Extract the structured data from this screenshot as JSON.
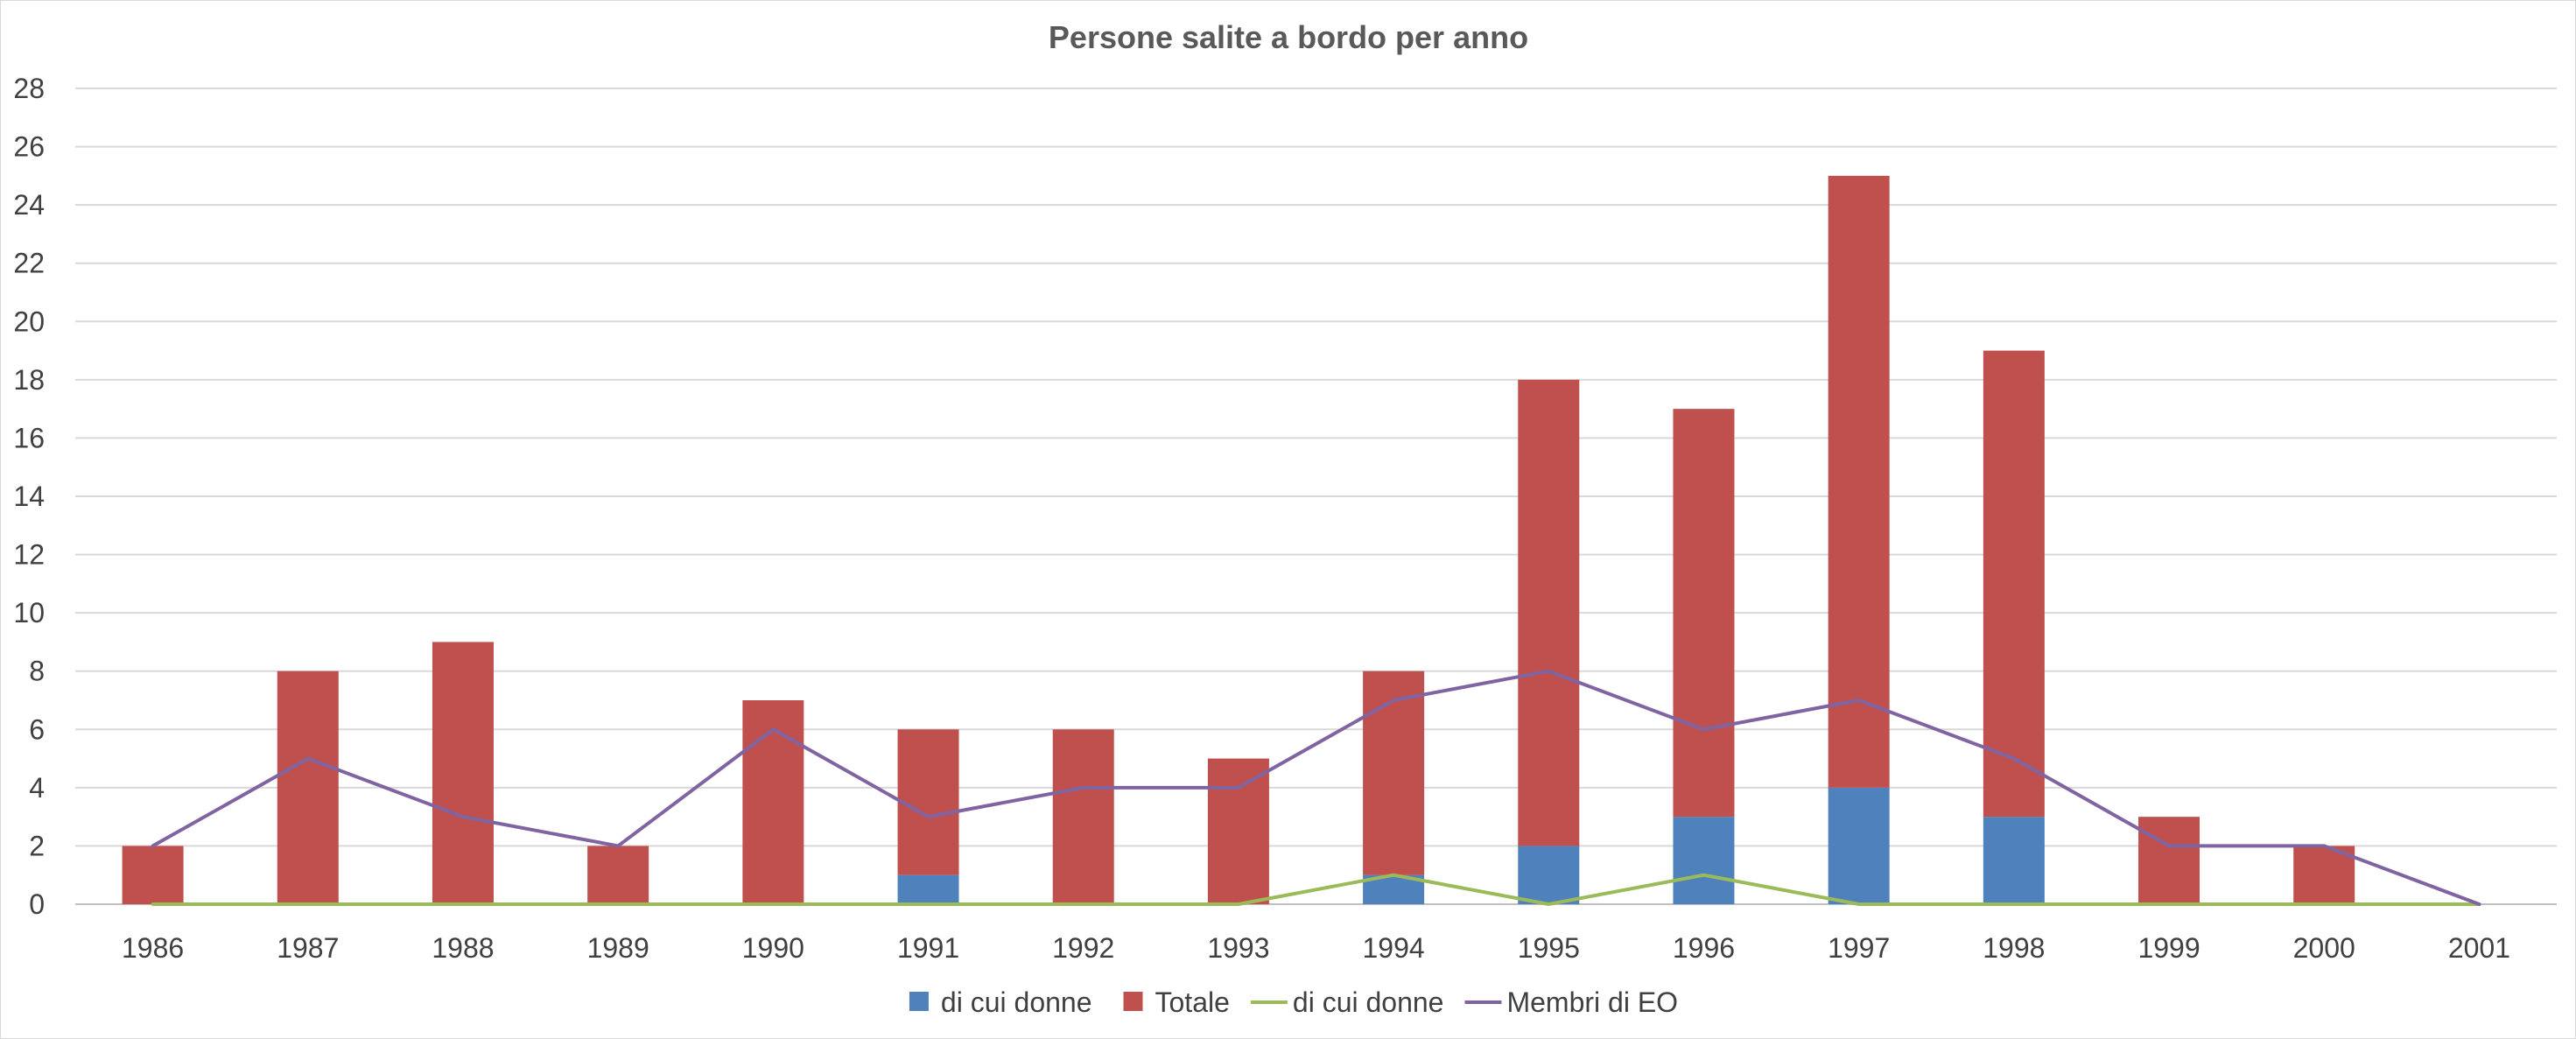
{
  "chart_data": {
    "type": "bar",
    "title": "Persone salite a bordo per anno",
    "xlabel": "",
    "ylabel": "",
    "ylim": [
      0,
      28
    ],
    "yticks": [
      0,
      2,
      4,
      6,
      8,
      10,
      12,
      14,
      16,
      18,
      20,
      22,
      24,
      26,
      28
    ],
    "grid": true,
    "legend_position": "bottom",
    "categories": [
      "1986",
      "1987",
      "1988",
      "1989",
      "1990",
      "1991",
      "1992",
      "1993",
      "1994",
      "1995",
      "1996",
      "1997",
      "1998",
      "1999",
      "2000",
      "2001"
    ],
    "series": [
      {
        "name": "di cui donne",
        "kind": "stacked-bar",
        "color": "#4f81bd",
        "values": [
          0,
          0,
          0,
          0,
          0,
          1,
          0,
          0,
          1,
          2,
          3,
          4,
          3,
          0,
          0,
          0
        ]
      },
      {
        "name": "Totale",
        "kind": "stacked-bar",
        "color": "#c0504d",
        "values": [
          2,
          8,
          9,
          2,
          7,
          5,
          6,
          5,
          7,
          16,
          14,
          21,
          16,
          3,
          2,
          0
        ]
      },
      {
        "name": "di cui donne",
        "kind": "line",
        "color": "#9bbb59",
        "values": [
          0,
          0,
          0,
          0,
          0,
          0,
          0,
          0,
          1,
          0,
          1,
          0,
          0,
          0,
          0,
          0
        ]
      },
      {
        "name": "Membri di EO",
        "kind": "line",
        "color": "#8064a2",
        "values": [
          2,
          5,
          3,
          2,
          6,
          3,
          4,
          4,
          7,
          8,
          6,
          7,
          5,
          2,
          2,
          0
        ]
      }
    ]
  }
}
